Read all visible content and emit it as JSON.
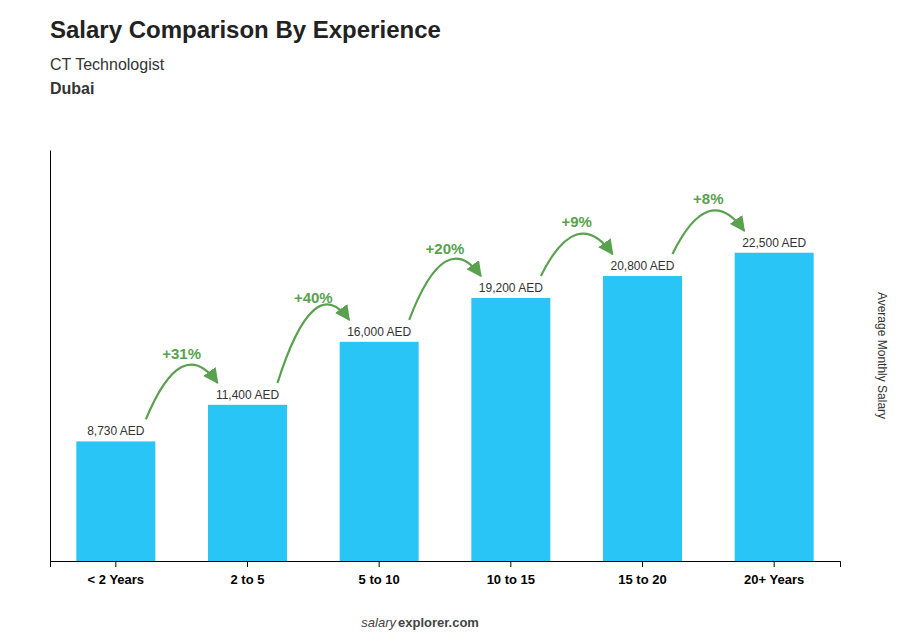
{
  "chart_data": {
    "type": "bar",
    "title": "Salary Comparison By Experience",
    "subtitle": [
      "CT Technologist",
      "Dubai"
    ],
    "ylabel": "Average Monthly Salary",
    "categories": [
      "< 2 Years",
      "2 to 5",
      "5 to 10",
      "10 to 15",
      "15 to 20",
      "20+ Years"
    ],
    "values": [
      8730,
      11400,
      16000,
      19200,
      20800,
      22500
    ],
    "value_labels": [
      "8,730 AED",
      "11,400 AED",
      "16,000 AED",
      "19,200 AED",
      "20,800 AED",
      "22,500 AED"
    ],
    "data_labels": true,
    "annotations": [
      "+31%",
      "+40%",
      "+20%",
      "+9%",
      "+8%"
    ],
    "footer": [
      "salary",
      "explorer.com"
    ],
    "color": "#29C5F6",
    "ylim": [
      0,
      30000
    ],
    "tick_labels": "x",
    "grid": false
  }
}
